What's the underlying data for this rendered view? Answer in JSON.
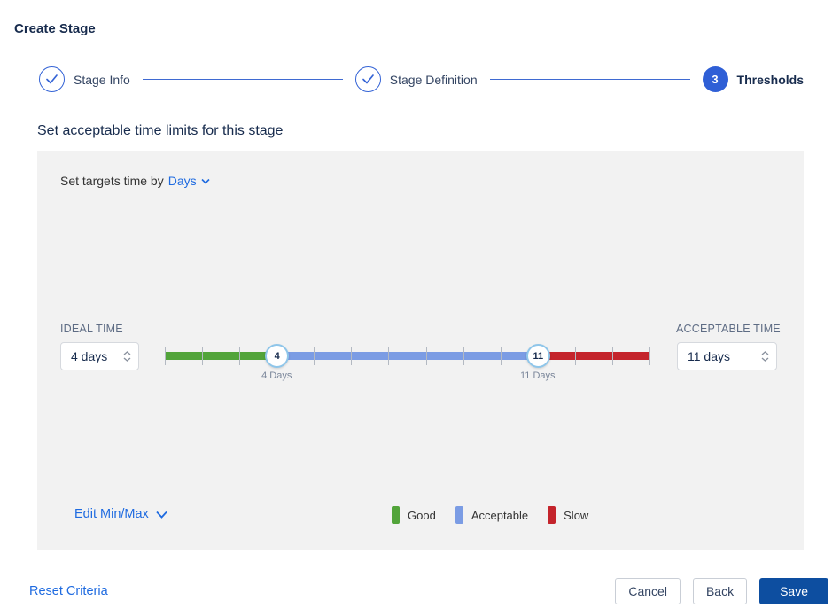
{
  "title": "Create Stage",
  "stepper": {
    "steps": [
      {
        "label": "Stage Info",
        "state": "complete"
      },
      {
        "label": "Stage Definition",
        "state": "complete"
      },
      {
        "label": "Thresholds",
        "state": "current",
        "number": "3"
      }
    ]
  },
  "section_title": "Set acceptable time limits for this stage",
  "panel": {
    "targets_label": "Set targets time by",
    "targets_unit": "Days",
    "ideal": {
      "label": "IDEAL TIME",
      "value": "4 days"
    },
    "acceptable": {
      "label": "ACCEPTABLE TIME",
      "value": "11 days"
    },
    "slider": {
      "min": 1,
      "max": 14,
      "ideal_value": 4,
      "acceptable_value": 11,
      "ideal_handle": "4",
      "acceptable_handle": "11",
      "ideal_caption": "4 Days",
      "acceptable_caption": "11 Days"
    },
    "edit_minmax_label": "Edit Min/Max",
    "legend": [
      {
        "label": "Good",
        "color": "#52a43a"
      },
      {
        "label": "Acceptable",
        "color": "#7b9ce4"
      },
      {
        "label": "Slow",
        "color": "#c4242c"
      }
    ]
  },
  "footer": {
    "reset_label": "Reset Criteria",
    "cancel_label": "Cancel",
    "back_label": "Back",
    "save_label": "Save"
  },
  "colors": {
    "good": "#52a43a",
    "acceptable": "#7b9ce4",
    "slow": "#c4242c",
    "link_blue": "#1f6be0",
    "stepper_blue": "#2f5fd6",
    "save_blue": "#0d4ea0"
  }
}
